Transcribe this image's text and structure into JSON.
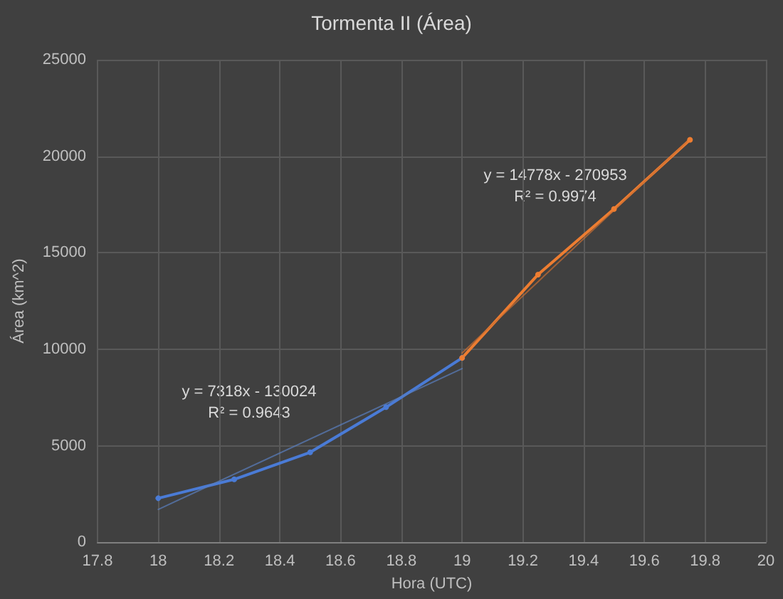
{
  "chart_data": {
    "type": "line",
    "title": "Tormenta II (Área)",
    "xlabel": "Hora (UTC)",
    "ylabel": "Área (km^2)",
    "xlim": [
      17.8,
      20
    ],
    "xticks": [
      17.8,
      18,
      18.2,
      18.4,
      18.6,
      18.8,
      19,
      19.2,
      19.4,
      19.6,
      19.8,
      20
    ],
    "ylim": [
      0,
      25000
    ],
    "yticks": [
      0,
      5000,
      10000,
      15000,
      20000,
      25000
    ],
    "grid": true,
    "marker": "circle",
    "series": [
      {
        "color": "#4a7bd6",
        "x": [
          18,
          18.25,
          18.5,
          18.75,
          19
        ],
        "values": [
          2280,
          3260,
          4660,
          7000,
          9550
        ]
      },
      {
        "color": "#ed7d31",
        "x": [
          19,
          19.25,
          19.5,
          19.75
        ],
        "values": [
          9550,
          13870,
          17270,
          20850
        ]
      },
      {
        "color": "#5a7fbf",
        "marker": "none",
        "x": [
          18,
          19
        ],
        "values": [
          1700,
          9000
        ]
      },
      {
        "color": "#c86d33",
        "marker": "none",
        "x": [
          19,
          19.75
        ],
        "values": [
          9800,
          20900
        ]
      }
    ],
    "annotations": [
      "y = 7318x - 130024\nR² = 0.9643",
      "y = 14778x - 270953\nR² = 0.9974"
    ]
  }
}
